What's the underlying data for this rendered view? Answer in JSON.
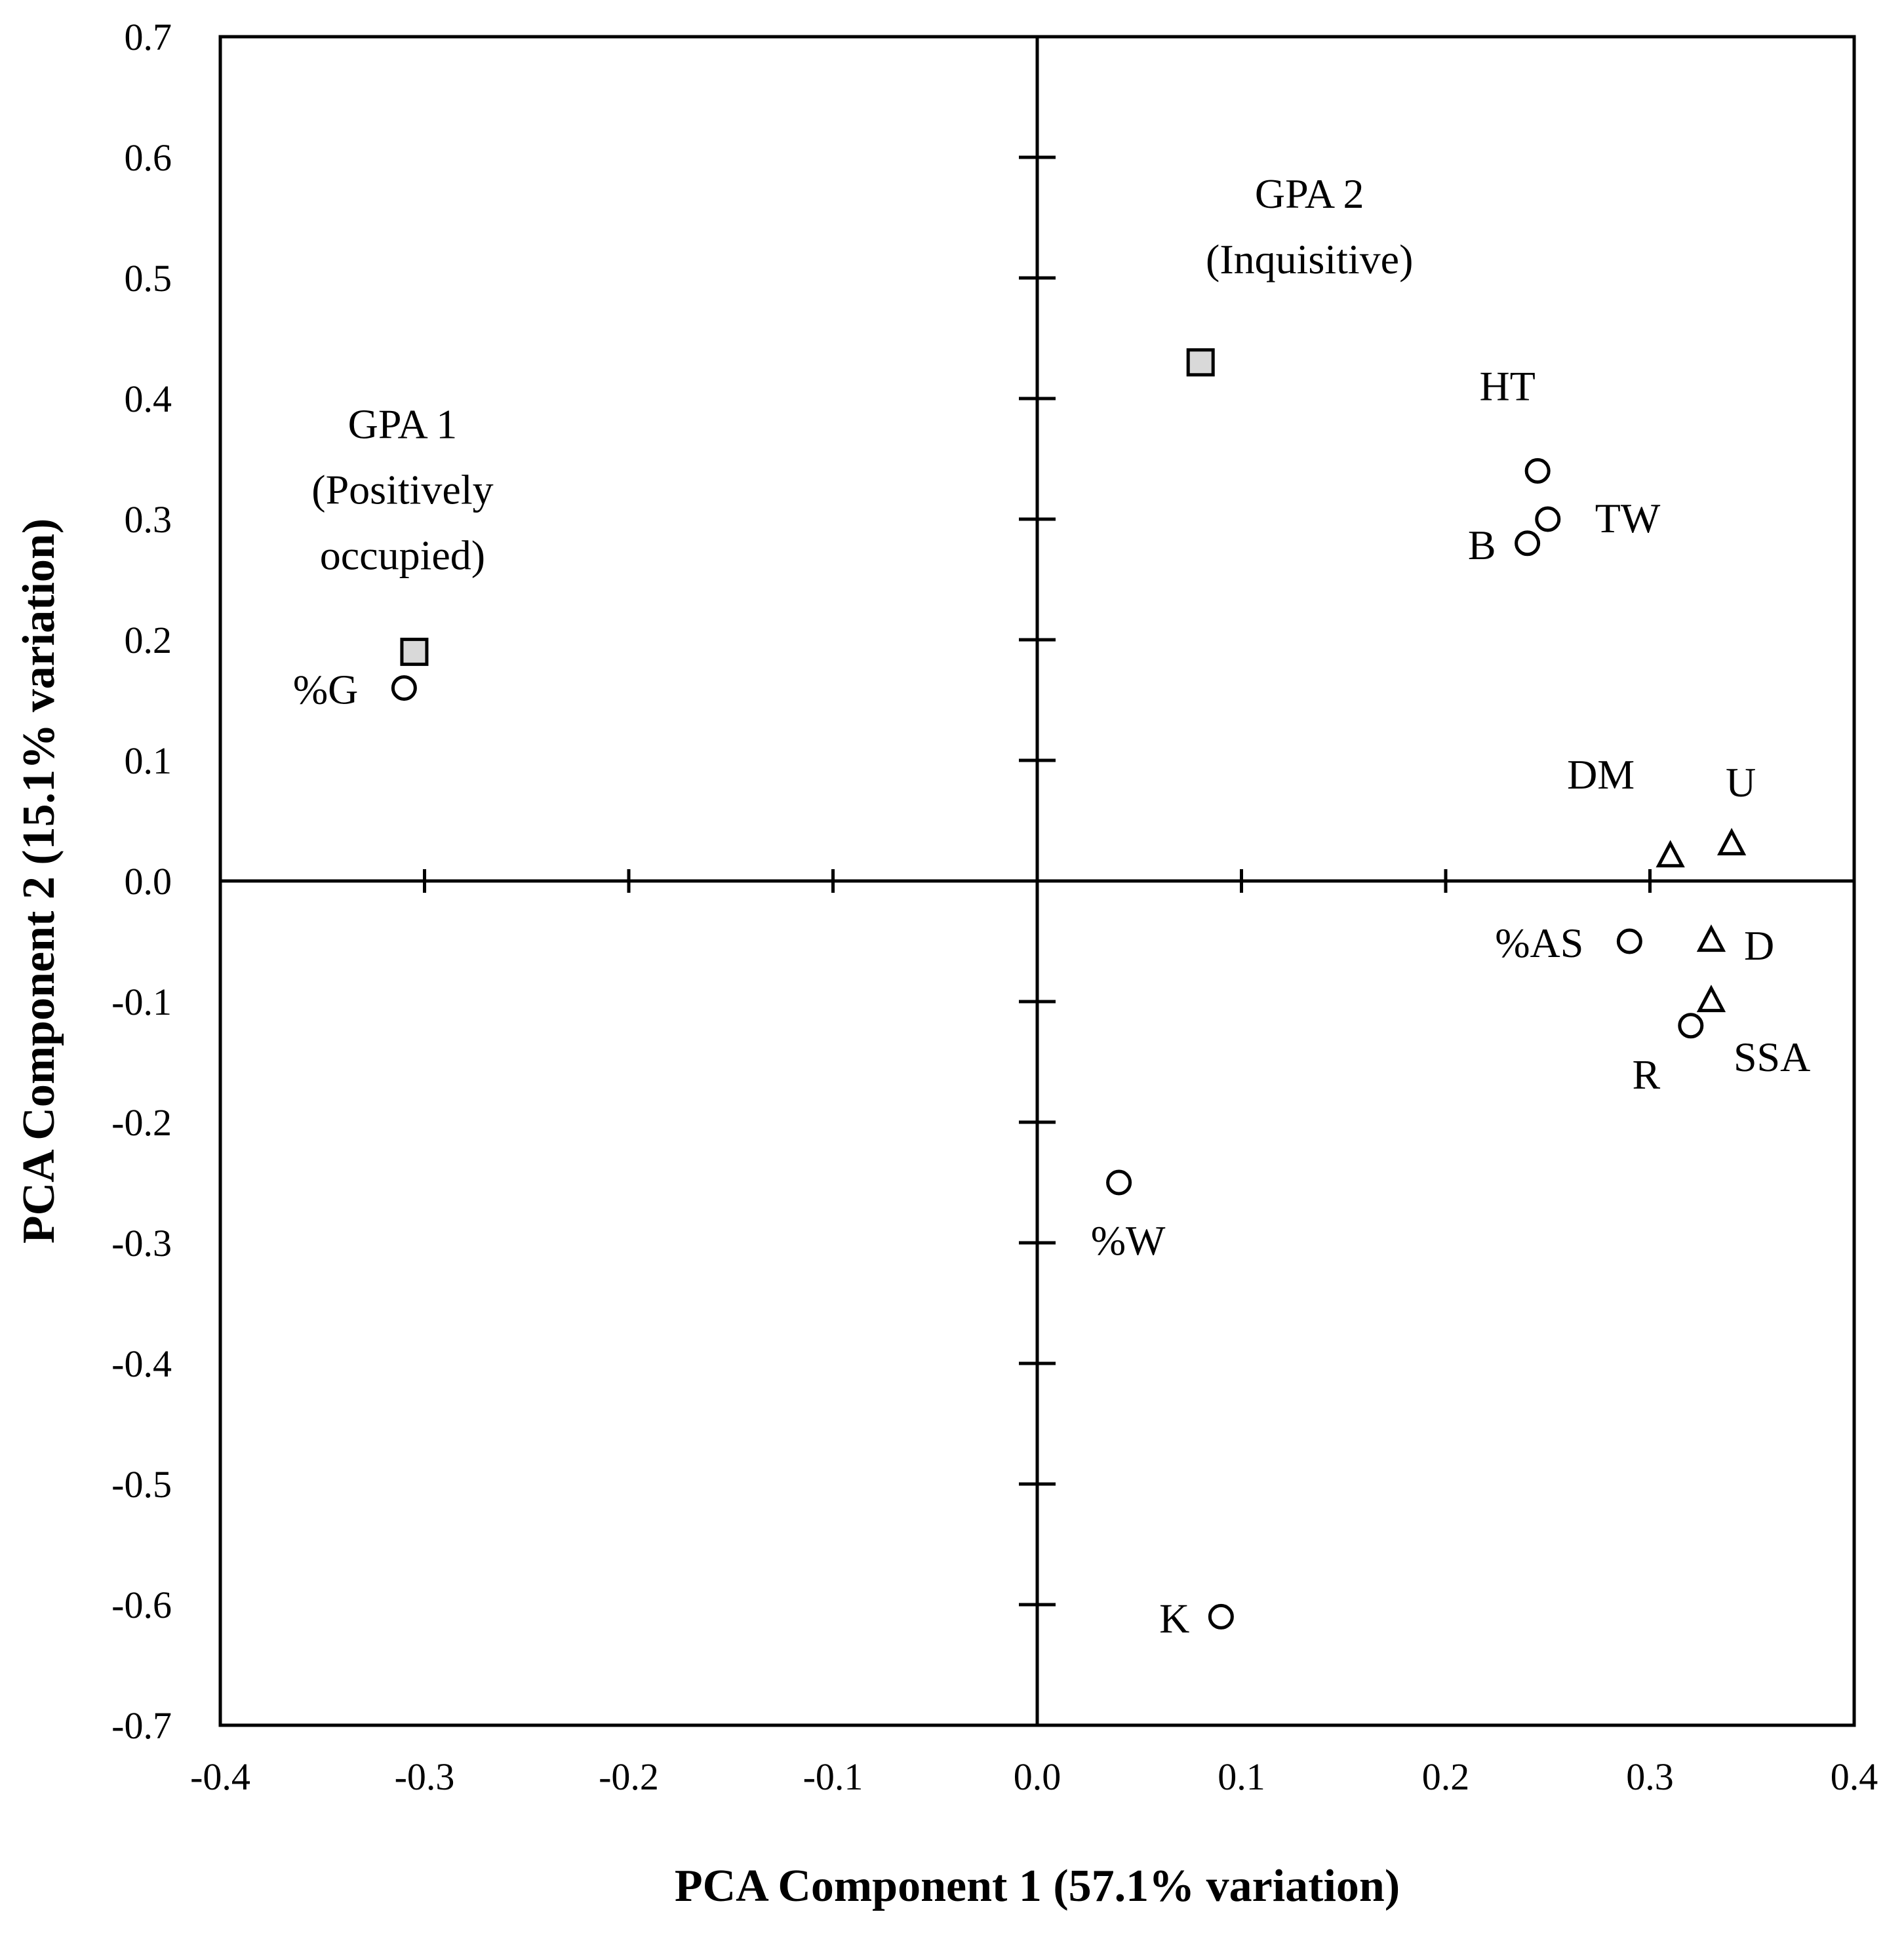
{
  "chart_data": {
    "type": "scatter",
    "xlabel": "PCA Component 1 (57.1% variation)",
    "ylabel": "PCA Component 2 (15.1% variation)",
    "xlim": [
      -0.4,
      0.4
    ],
    "ylim": [
      -0.7,
      0.7
    ],
    "x_ticks": [
      "-0.4",
      "-0.3",
      "-0.2",
      "-0.1",
      "0.0",
      "0.1",
      "0.2",
      "0.3",
      "0.4"
    ],
    "y_ticks": [
      "0.7",
      "0.6",
      "0.5",
      "0.4",
      "0.3",
      "0.2",
      "0.1",
      "0.0",
      "-0.1",
      "-0.2",
      "-0.3",
      "-0.4",
      "-0.5",
      "-0.6",
      "-0.7"
    ],
    "grid": false,
    "series": [
      {
        "name": "circle",
        "points": [
          {
            "label": "HT",
            "x": 0.245,
            "y": 0.34
          },
          {
            "label": "TW",
            "x": 0.25,
            "y": 0.3
          },
          {
            "label": "B",
            "x": 0.24,
            "y": 0.28
          },
          {
            "label": "%G",
            "x": -0.31,
            "y": 0.16
          },
          {
            "label": "%AS",
            "x": 0.29,
            "y": -0.05
          },
          {
            "label": "R",
            "x": 0.32,
            "y": -0.12
          },
          {
            "label": "%W",
            "x": 0.04,
            "y": -0.25
          },
          {
            "label": "K",
            "x": 0.09,
            "y": -0.61
          }
        ]
      },
      {
        "name": "triangle",
        "points": [
          {
            "label": "DM",
            "x": 0.31,
            "y": 0.02
          },
          {
            "label": "U",
            "x": 0.34,
            "y": 0.03
          },
          {
            "label": "D",
            "x": 0.33,
            "y": -0.05
          },
          {
            "label": "SSA",
            "x": 0.33,
            "y": -0.1
          }
        ]
      },
      {
        "name": "square",
        "points": [
          {
            "label": "GPA 1",
            "sublabel": [
              "(Positively",
              "occupied)"
            ],
            "x": -0.305,
            "y": 0.19
          },
          {
            "label": "GPA 2",
            "sublabel": [
              "(Inquisitive)"
            ],
            "x": 0.08,
            "y": 0.43
          }
        ]
      }
    ]
  }
}
